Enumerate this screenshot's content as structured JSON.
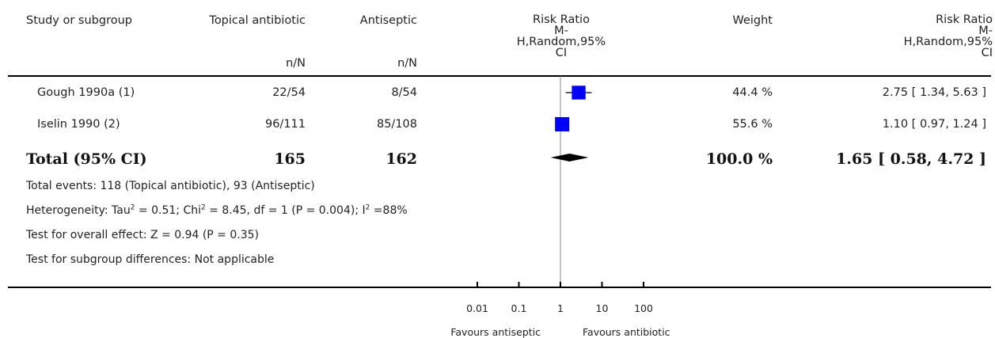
{
  "header": {
    "study": "Study or subgroup",
    "group1": "Topical antibiotic",
    "group2": "Antiseptic",
    "nN1": "n/N",
    "nN2": "n/N",
    "rr_plot": [
      "Risk Ratio",
      "M-",
      "H,Random,95%",
      "CI"
    ],
    "weight": "Weight",
    "rr_text": [
      "Risk Ratio",
      "M-",
      "H,Random,95%",
      "CI"
    ]
  },
  "rows": [
    {
      "study": "Gough 1990a (1)",
      "g1": "22/54",
      "g2": "8/54",
      "weight": "44.4 %",
      "rr": "2.75 [ 1.34, 5.63 ]"
    },
    {
      "study": "Iselin 1990 (2)",
      "g1": "96/111",
      "g2": "85/108",
      "weight": "55.6 %",
      "rr": "1.10 [ 0.97, 1.24 ]"
    }
  ],
  "total": {
    "label": "Total (95% CI)",
    "g1": "165",
    "g2": "162",
    "weight": "100.0 %",
    "rr": "1.65 [ 0.58, 4.72 ]"
  },
  "footer": {
    "events": "Total events: 118 (Topical antibiotic), 93 (Antiseptic)",
    "het_a": "Heterogeneity: Tau",
    "het_b": " = 0.51; Chi",
    "het_c": " = 8.45, df = 1 (P = 0.004); I",
    "het_d": " =88%",
    "sup2": "2",
    "overall": "Test for overall effect: Z = 0.94 (P = 0.35)",
    "subgroup": "Test for subgroup differences: Not applicable"
  },
  "chart_data": {
    "type": "forest",
    "scale": "log",
    "xlim": [
      0.01,
      100
    ],
    "ticks": [
      0.01,
      0.1,
      1,
      10,
      100
    ],
    "tick_labels": [
      "0.01",
      "0.1",
      "1",
      "10",
      "100"
    ],
    "favours_left": "Favours antiseptic",
    "favours_right": "Favours antibiotic",
    "studies": [
      {
        "name": "Gough 1990a (1)",
        "rr": 2.75,
        "lo": 1.34,
        "hi": 5.63,
        "weight": 44.4
      },
      {
        "name": "Iselin 1990 (2)",
        "rr": 1.1,
        "lo": 0.97,
        "hi": 1.24,
        "weight": 55.6
      }
    ],
    "pooled": {
      "rr": 1.65,
      "lo": 0.58,
      "hi": 4.72
    },
    "colors": {
      "square": "#0000ff",
      "diamond": "#000000",
      "line": "#000000"
    }
  }
}
